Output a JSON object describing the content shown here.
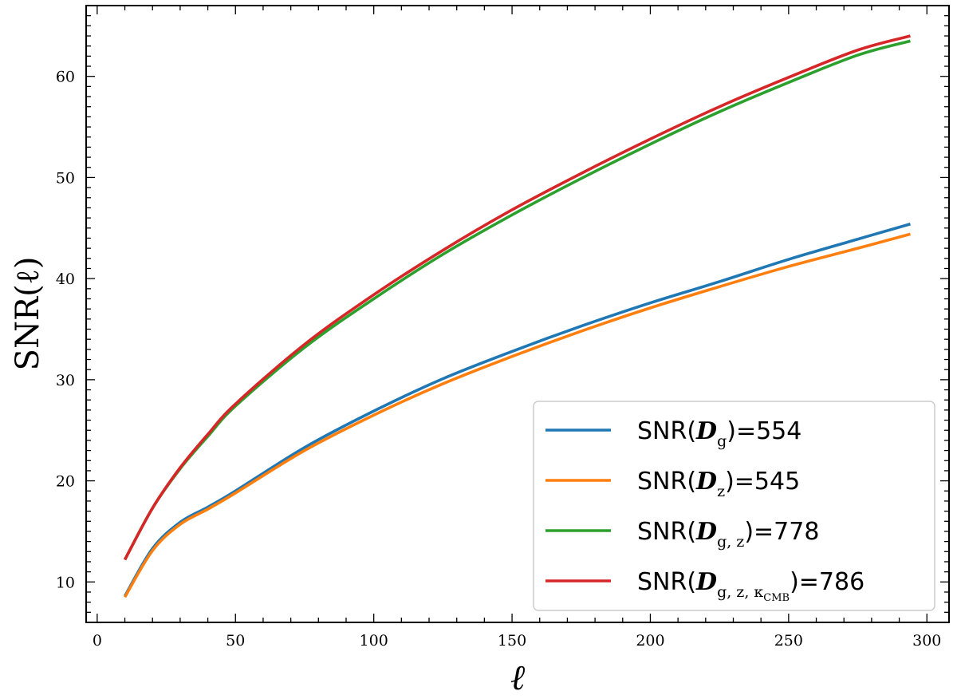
{
  "chart_data": {
    "type": "line",
    "title": "",
    "xlabel": "ℓ",
    "ylabel": "SNR(ℓ)",
    "xlim": [
      -4,
      308
    ],
    "ylim": [
      6,
      67
    ],
    "xticks": [
      0,
      50,
      100,
      150,
      200,
      250,
      300
    ],
    "yticks": [
      10,
      20,
      30,
      40,
      50,
      60
    ],
    "grid": false,
    "legend_position": "lower-right",
    "series": [
      {
        "key": "g",
        "color": "#1f77b4",
        "legend": {
          "prefix": "SNR(",
          "symbol": "D",
          "subscript": "g",
          "suffix": ")=554"
        },
        "x": [
          10,
          20,
          30,
          40,
          50,
          75,
          100,
          125,
          150,
          175,
          200,
          225,
          250,
          275,
          294
        ],
        "y": [
          8.6,
          13.3,
          15.9,
          17.4,
          19.0,
          23.3,
          26.9,
          30.1,
          32.8,
          35.3,
          37.6,
          39.7,
          41.9,
          43.9,
          45.4
        ]
      },
      {
        "key": "z",
        "color": "#ff7f0e",
        "legend": {
          "prefix": "SNR(",
          "symbol": "D",
          "subscript": "z",
          "suffix": ")=545"
        },
        "x": [
          10,
          20,
          30,
          40,
          50,
          75,
          100,
          125,
          150,
          175,
          200,
          225,
          250,
          275,
          294
        ],
        "y": [
          8.5,
          13.1,
          15.7,
          17.2,
          18.8,
          23.0,
          26.5,
          29.6,
          32.3,
          34.8,
          37.1,
          39.2,
          41.2,
          43.0,
          44.4
        ]
      },
      {
        "key": "gz",
        "color": "#2ca02c",
        "legend": {
          "prefix": "SNR(",
          "symbol": "D",
          "subscript": "g, z",
          "suffix": ")=778"
        },
        "x": [
          10,
          20,
          30,
          40,
          50,
          75,
          100,
          125,
          150,
          175,
          200,
          225,
          250,
          275,
          294
        ],
        "y": [
          12.2,
          17.3,
          21.2,
          24.4,
          27.4,
          33.2,
          38.0,
          42.4,
          46.3,
          49.9,
          53.3,
          56.5,
          59.4,
          62.1,
          63.5
        ]
      },
      {
        "key": "gzk",
        "color": "#d62728",
        "legend": {
          "prefix": "SNR(",
          "symbol": "D",
          "subscript": "g, z, κ",
          "subsub": "CMB",
          "suffix": ")=786"
        },
        "x": [
          10,
          20,
          30,
          40,
          50,
          75,
          100,
          125,
          150,
          175,
          200,
          225,
          250,
          275,
          294
        ],
        "y": [
          12.2,
          17.3,
          21.3,
          24.6,
          27.6,
          33.5,
          38.4,
          42.8,
          46.8,
          50.4,
          53.8,
          57.0,
          59.9,
          62.6,
          64.0
        ]
      }
    ]
  }
}
